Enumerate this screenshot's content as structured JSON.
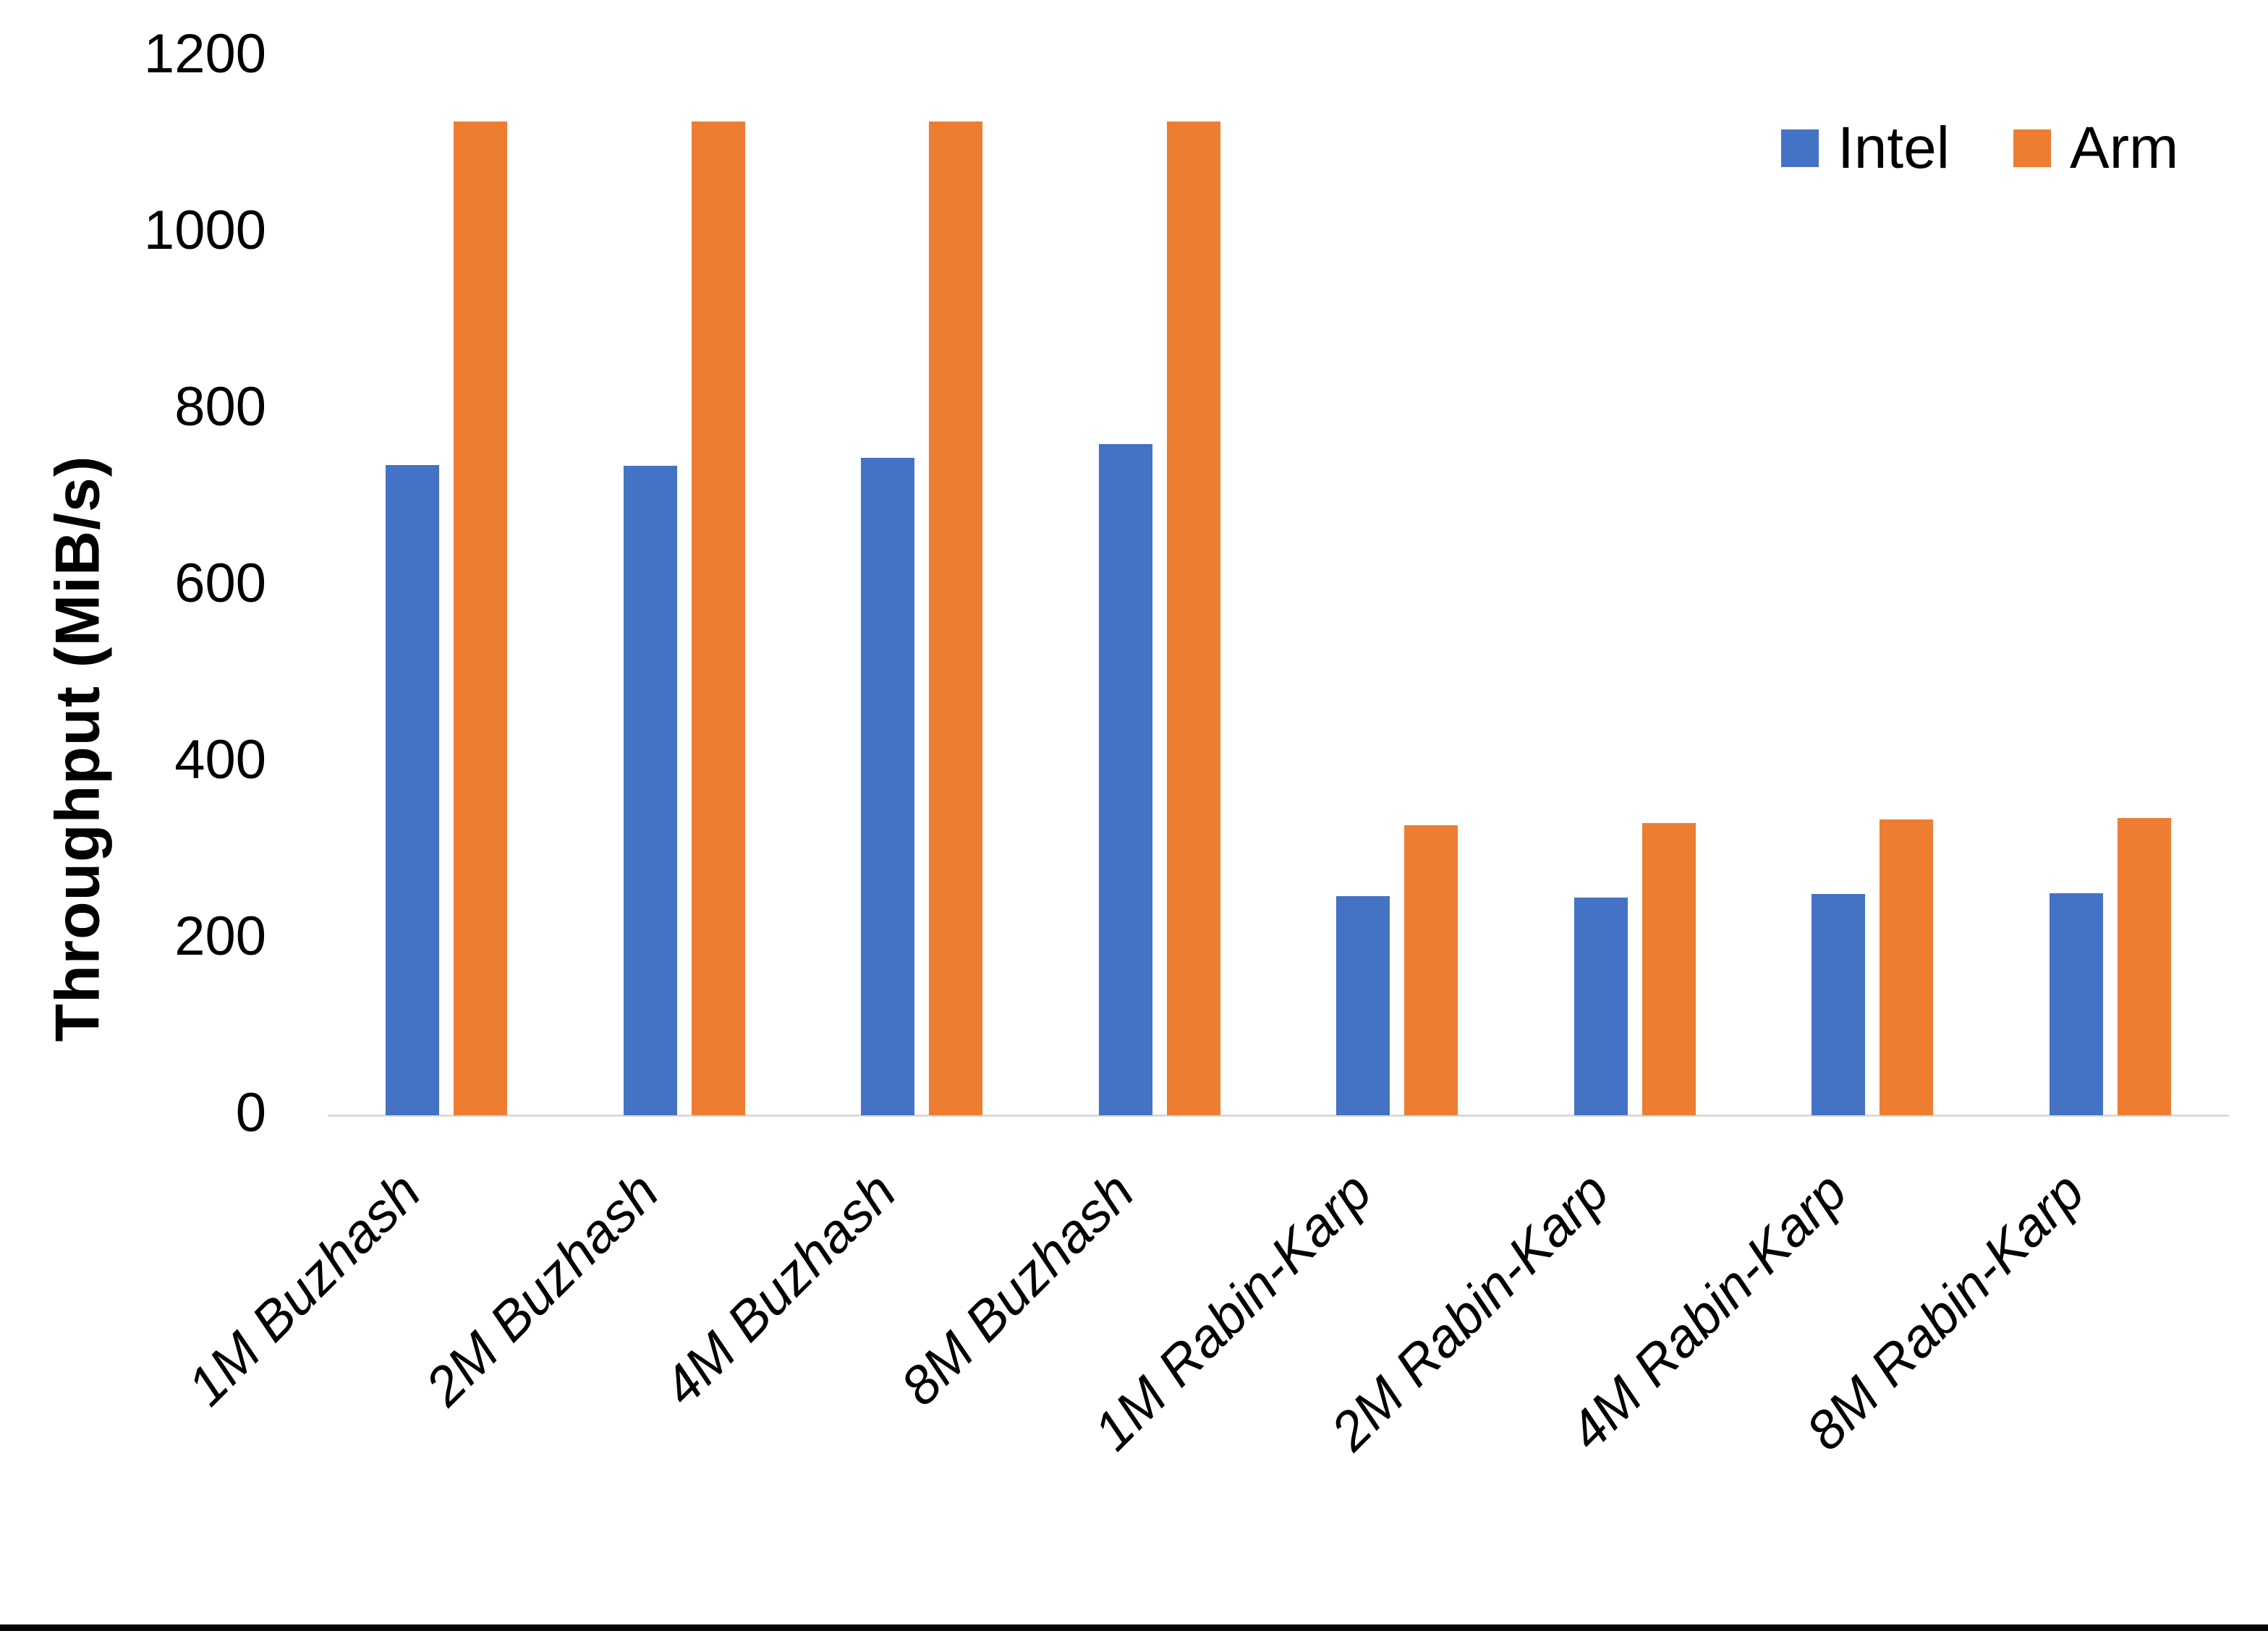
{
  "chart_data": {
    "type": "bar",
    "title": "",
    "categories": [
      "1M Buzhash",
      "2M Buzhash",
      "4M Buzhash",
      "8M Buzhash",
      "1M Rabin-Karp",
      "2M Rabin-Karp",
      "4M Rabin-Karp",
      "8M Rabin-Karp"
    ],
    "series": [
      {
        "name": "Intel",
        "color": "#4472C4",
        "values": [
          737,
          736,
          745,
          761,
          248,
          247,
          251,
          252
        ]
      },
      {
        "name": "Arm",
        "color": "#ED7D31",
        "values": [
          1126,
          1126,
          1126,
          1126,
          329,
          331,
          335,
          337
        ]
      }
    ],
    "xlabel": "",
    "ylabel": "Throughput (MiB/s)",
    "ylim": [
      0,
      1200
    ],
    "ytick_step": 200,
    "yticks": [
      "0",
      "200",
      "400",
      "600",
      "800",
      "1000",
      "1200"
    ],
    "grid": false,
    "legend_position": "top-right"
  },
  "colors": {
    "axis_line": "#D9D9D9",
    "text": "#000000",
    "bottom_rule": "#000000"
  }
}
